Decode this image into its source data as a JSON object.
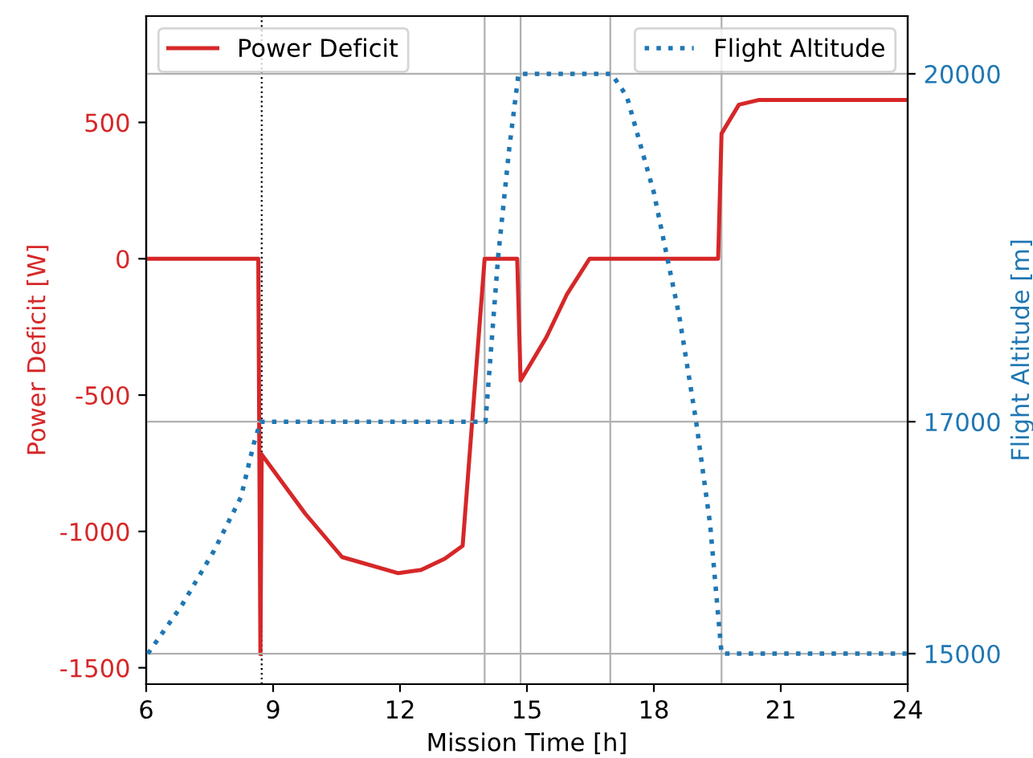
{
  "chart_data": {
    "type": "line",
    "xlabel": "Mission Time [h]",
    "ylabel": "Power Deficit [W]",
    "y2label": "Flight Altitude [m]",
    "xlim": [
      6,
      24
    ],
    "xticks": [
      6,
      9,
      12,
      15,
      18,
      21,
      24
    ],
    "ylim": [
      -1560,
      890
    ],
    "yticks": [
      -1500,
      -1000,
      -500,
      0,
      500
    ],
    "y2lim": [
      14737,
      20498
    ],
    "y2ticks": [
      15000,
      17000,
      20000
    ],
    "legend": "top",
    "grid": false,
    "series": [
      {
        "name": "Power Deficit",
        "color": "#d62728",
        "line_style": "solid",
        "x": [
          6,
          8.65,
          8.7,
          8.73,
          9.76,
          10.63,
          11.96,
          12.5,
          13.06,
          13.48,
          14.0,
          14.77,
          14.85,
          15.46,
          15.95,
          16.48,
          19.52,
          19.6,
          20.01,
          20.47,
          24
        ],
        "values": [
          0,
          0,
          -1450,
          -718,
          -935,
          -1094,
          -1153,
          -1141,
          -1100,
          -1053,
          0,
          0,
          -447,
          -288,
          -129,
          0,
          0,
          459,
          565,
          582,
          582
        ]
      },
      {
        "name": "Flight Altitude",
        "color": "#1f77b4",
        "line_style": "dotted",
        "axis": "y2",
        "x": [
          6.04,
          6.84,
          7.6,
          8.24,
          8.54,
          8.7,
          14.02,
          14.32,
          14.58,
          14.8,
          17.0,
          17.36,
          18.0,
          18.6,
          19.0,
          19.33,
          19.6,
          24
        ],
        "values": [
          15000,
          15415,
          15885,
          16350,
          16806,
          17000,
          17000,
          18425,
          19350,
          20000,
          20000,
          19806,
          18976,
          17912,
          17000,
          16115,
          15000,
          15000
        ]
      }
    ],
    "ref_lines": [
      {
        "axis": "x",
        "value": 8.73,
        "color": "#000000",
        "line_style": "dotted"
      },
      {
        "axis": "x",
        "value": 14.0,
        "color": "#b0b0b0",
        "line_style": "solid"
      },
      {
        "axis": "x",
        "value": 14.85,
        "color": "#b0b0b0",
        "line_style": "solid"
      },
      {
        "axis": "x",
        "value": 16.97,
        "color": "#b0b0b0",
        "line_style": "solid"
      },
      {
        "axis": "x",
        "value": 19.6,
        "color": "#b0b0b0",
        "line_style": "solid"
      },
      {
        "axis": "y2",
        "value": 15000,
        "color": "#b0b0b0",
        "line_style": "solid"
      },
      {
        "axis": "y2",
        "value": 17000,
        "color": "#b0b0b0",
        "line_style": "solid"
      },
      {
        "axis": "y2",
        "value": 20000,
        "color": "#b0b0b0",
        "line_style": "solid"
      }
    ]
  }
}
